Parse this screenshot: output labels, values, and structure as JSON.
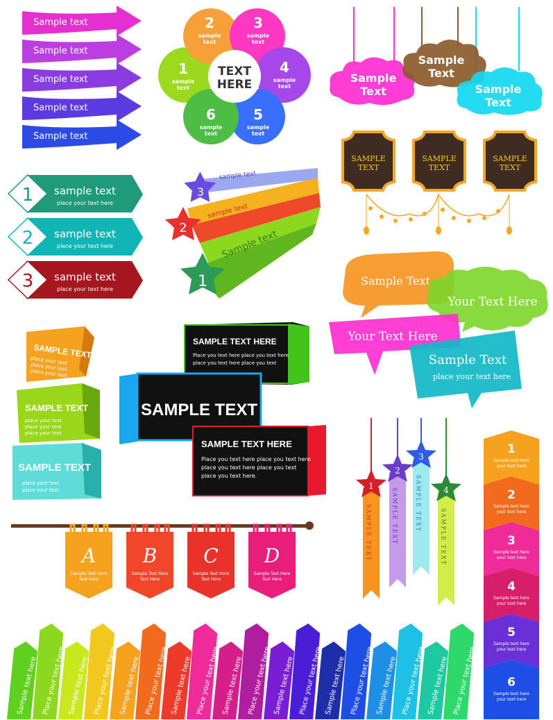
{
  "colors": {
    "magenta": "#e61e8c",
    "purple": "#8a2be2",
    "blue": "#1e50e6",
    "orange": "#f7931e",
    "green": "#7ac142",
    "cyan": "#00bcd4",
    "red": "#e8312f",
    "teal": "#12a59a",
    "maroon": "#a51c1c",
    "dark": "#3e3a39",
    "brown": "#8b5a2b",
    "gold": "#f5a623"
  },
  "arrows": {
    "items": [
      {
        "label": "Sample text",
        "color": "#e62fd0"
      },
      {
        "label": "Sample text",
        "color": "#bb3ee0"
      },
      {
        "label": "Sample text",
        "color": "#8b3ce0"
      },
      {
        "label": "Sample text",
        "color": "#5b3ae2"
      },
      {
        "label": "Sample text",
        "color": "#2c4be6"
      }
    ]
  },
  "flower": {
    "center_line1": "TEXT",
    "center_line2": "HERE",
    "petals": [
      {
        "num": "1",
        "l1": "sample",
        "l2": "text",
        "color": "#8fd400"
      },
      {
        "num": "2",
        "l1": "sample",
        "l2": "text",
        "color": "#f7931e"
      },
      {
        "num": "3",
        "l1": "sample",
        "l2": "text",
        "color": "#ff1dbd"
      },
      {
        "num": "4",
        "l1": "sample",
        "l2": "text",
        "color": "#9a2fe6"
      },
      {
        "num": "5",
        "l1": "sample",
        "l2": "text",
        "color": "#1e5cff"
      },
      {
        "num": "6",
        "l1": "sample",
        "l2": "text",
        "color": "#36b52a"
      }
    ]
  },
  "clouds": [
    {
      "l1": "Sample",
      "l2": "Text",
      "color": "#ff2bd0"
    },
    {
      "l1": "Sample",
      "l2": "Text",
      "color": "#8b5a2b"
    },
    {
      "l1": "Sample",
      "l2": "Text",
      "color": "#12d8f0"
    }
  ],
  "frames": [
    {
      "l1": "SAMPLE",
      "l2": "TEXT"
    },
    {
      "l1": "SAMPLE",
      "l2": "TEXT"
    },
    {
      "l1": "SAMPLE",
      "l2": "TEXT"
    }
  ],
  "tags": [
    {
      "num": "1",
      "title": "sample text",
      "sub": "place your text here",
      "color": "#1f9a7a"
    },
    {
      "num": "2",
      "title": "sample text",
      "sub": "place your text here",
      "color": "#12b5b5"
    },
    {
      "num": "3",
      "title": "sample text",
      "sub": "place your text here",
      "color": "#a5161f"
    }
  ],
  "stars": [
    {
      "num": "3",
      "label": "sample text",
      "color": "#6a4be0"
    },
    {
      "num": "2",
      "label": "sample text",
      "color": "#e8312f"
    },
    {
      "num": "1",
      "label": "Sample text",
      "color": "#2e9a57"
    }
  ],
  "bubbles": [
    {
      "text": "Sample Text",
      "color": "#f7931e"
    },
    {
      "text": "Your Text Here",
      "color": "#7cd62a"
    },
    {
      "text": "Your Text Here",
      "color": "#ff2bd0"
    },
    {
      "text": "Sample Text",
      "sub": "place your text here",
      "color": "#12b8c8"
    }
  ],
  "boxes": [
    {
      "text": "SAMPLE TEXT",
      "sub": [
        "place your text",
        "place your text",
        "place your text"
      ],
      "color": "#f7a21e"
    },
    {
      "text": "SAMPLE TEXT",
      "sub": [
        "place your text",
        "place your text",
        "place your text"
      ],
      "color": "#9ad61a"
    },
    {
      "text": "SAMPLE TEXT",
      "sub": [
        "place your text",
        "place your text"
      ],
      "color": "#5ddcd8"
    }
  ],
  "boards": [
    {
      "title": "SAMPLE TEXT HERE",
      "lines": [
        "Place you text here place you text here",
        "place you text here place you text"
      ],
      "accent": "#42c41a"
    },
    {
      "title": "SAMPLE TEXT",
      "lines": [],
      "accent": "#19a8f0"
    },
    {
      "title": "SAMPLE TEXT HERE",
      "lines": [
        "Place you text here place you text here",
        "place you text here place you text",
        "place you text here."
      ],
      "accent": "#e8192c"
    }
  ],
  "banners": [
    {
      "letter": "A",
      "l1": "Sample Text Here",
      "l2": "Text Here",
      "color": "#f7a21e"
    },
    {
      "letter": "B",
      "l1": "Sample Text Here",
      "l2": "Text Here",
      "color": "#f2462a"
    },
    {
      "letter": "C",
      "l1": "Sample Text Here",
      "l2": "Text Here",
      "color": "#e8322a"
    },
    {
      "letter": "D",
      "l1": "Sample Text Here",
      "l2": "Text Here",
      "color": "#e91e7a"
    }
  ],
  "ribbons": [
    {
      "num": "1",
      "label": "SAMPLE TEXT",
      "color": "#f7931e",
      "star": "#d41e2a"
    },
    {
      "num": "2",
      "label": "SAMPLE TEXT",
      "color": "#c59ae8",
      "star": "#6a3cc8"
    },
    {
      "num": "3",
      "label": "SAMPLE TEXT",
      "color": "#9ee8f0",
      "star": "#2e5ce6"
    },
    {
      "num": "4",
      "label": "SAMPLE TEXT",
      "color": "#d4ec4a",
      "star": "#2a8a3a"
    }
  ],
  "steps": [
    {
      "num": "1",
      "l1": "Sample text here",
      "l2": "your text here",
      "color": "#f7a21e"
    },
    {
      "num": "2",
      "l1": "Sample text here",
      "l2": "your text here",
      "color": "#f26a1e"
    },
    {
      "num": "3",
      "l1": "Sample text here",
      "l2": "your text here",
      "color": "#ef2b9a"
    },
    {
      "num": "4",
      "l1": "Sample text here",
      "l2": "your text here",
      "color": "#d61e6a"
    },
    {
      "num": "5",
      "l1": "Sample text here",
      "l2": "your text here",
      "color": "#6a2fd6"
    },
    {
      "num": "6",
      "l1": "Sample text here",
      "l2": "your text here",
      "color": "#1e4ee6"
    }
  ],
  "strips": [
    {
      "text": "Sample text here",
      "color": "#5fd01e"
    },
    {
      "text": "Place your text here",
      "color": "#8cd81e"
    },
    {
      "text": "Sample text here",
      "color": "#c9e81e"
    },
    {
      "text": "Place your text here",
      "color": "#f2c81e"
    },
    {
      "text": "Sample text here",
      "color": "#f7a21e"
    },
    {
      "text": "Place your text here",
      "color": "#f26a1e"
    },
    {
      "text": "Sample text here",
      "color": "#ee3a2a"
    },
    {
      "text": "Place your text here",
      "color": "#ef2b9a"
    },
    {
      "text": "Sample text here",
      "color": "#d61e8a"
    },
    {
      "text": "Place your text here",
      "color": "#b01ea0"
    },
    {
      "text": "Sample text here",
      "color": "#7a1ed6"
    },
    {
      "text": "Place your text here",
      "color": "#4a1ed6"
    },
    {
      "text": "Sample text here",
      "color": "#1e2ea8"
    },
    {
      "text": "Place your text here",
      "color": "#1e4ee6"
    },
    {
      "text": "Sample text here",
      "color": "#1e8ee6"
    },
    {
      "text": "Place your text here",
      "color": "#1ec0e6"
    },
    {
      "text": "Sample text here",
      "color": "#1ec8a0"
    },
    {
      "text": "Place your text here",
      "color": "#2ed86a"
    }
  ]
}
